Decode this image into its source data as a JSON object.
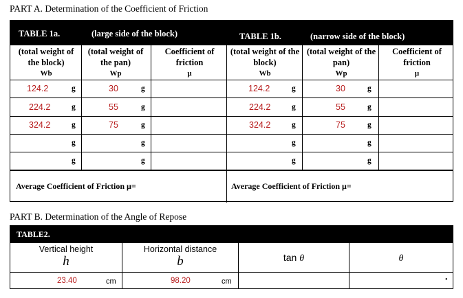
{
  "partA": {
    "title": "PART A.  Determination of the Coefficient of Friction",
    "table1a": {
      "label": "TABLE 1a.",
      "subtitle": "(large side of   the block)",
      "col1": "(total weight of the block)",
      "col1_sym": "Wb",
      "col2": "(total weight of the pan)",
      "col2_sym": "Wp",
      "col3": "Coefficient of friction",
      "col3_sym": "μ",
      "rows": [
        {
          "wb": "124.2",
          "wb_unit": "g",
          "wp": "30",
          "wp_unit": "g"
        },
        {
          "wb": "224.2",
          "wb_unit": "g",
          "wp": "55",
          "wp_unit": "g"
        },
        {
          "wb": "324.2",
          "wb_unit": "g",
          "wp": "75",
          "wp_unit": "g"
        },
        {
          "wb": "",
          "wb_unit": "g",
          "wp": "",
          "wp_unit": "g"
        },
        {
          "wb": "",
          "wb_unit": "g",
          "wp": "",
          "wp_unit": "g"
        }
      ],
      "average": "Average Coefficient of Friction μ="
    },
    "table1b": {
      "label": "TABLE 1b.",
      "subtitle": "(narrow side of   the block)",
      "col1": "(total weight of the block)",
      "col1_sym": "Wb",
      "col2": "(total weight of the pan)",
      "col2_sym": "Wp",
      "col3": "Coefficient of friction",
      "col3_sym": "μ",
      "rows": [
        {
          "wb": "124.2",
          "wb_unit": "g",
          "wp": "30",
          "wp_unit": "g"
        },
        {
          "wb": "224.2",
          "wb_unit": "g",
          "wp": "55",
          "wp_unit": "g"
        },
        {
          "wb": "324.2",
          "wb_unit": "g",
          "wp": "75",
          "wp_unit": "g"
        },
        {
          "wb": "",
          "wb_unit": "g",
          "wp": "",
          "wp_unit": "g"
        },
        {
          "wb": "",
          "wb_unit": "g",
          "wp": "",
          "wp_unit": "g"
        }
      ],
      "average": "Average Coefficient of Friction μ="
    }
  },
  "partB": {
    "title": "PART B.  Determination of the Angle of Repose",
    "table2": {
      "label": "TABLE2.",
      "col1": "Vertical height",
      "col1_sym": "h",
      "col2": "Horizontal distance",
      "col2_sym": "b",
      "col3": "tan",
      "col3_sym": "θ",
      "col4_sym": "θ",
      "row": {
        "h": "23.40",
        "h_unit": "cm",
        "b": "98.20",
        "b_unit": "cm",
        "dot": "•"
      }
    }
  },
  "colors": {
    "value_text": "#b71c1c",
    "header_bg": "#000000"
  }
}
